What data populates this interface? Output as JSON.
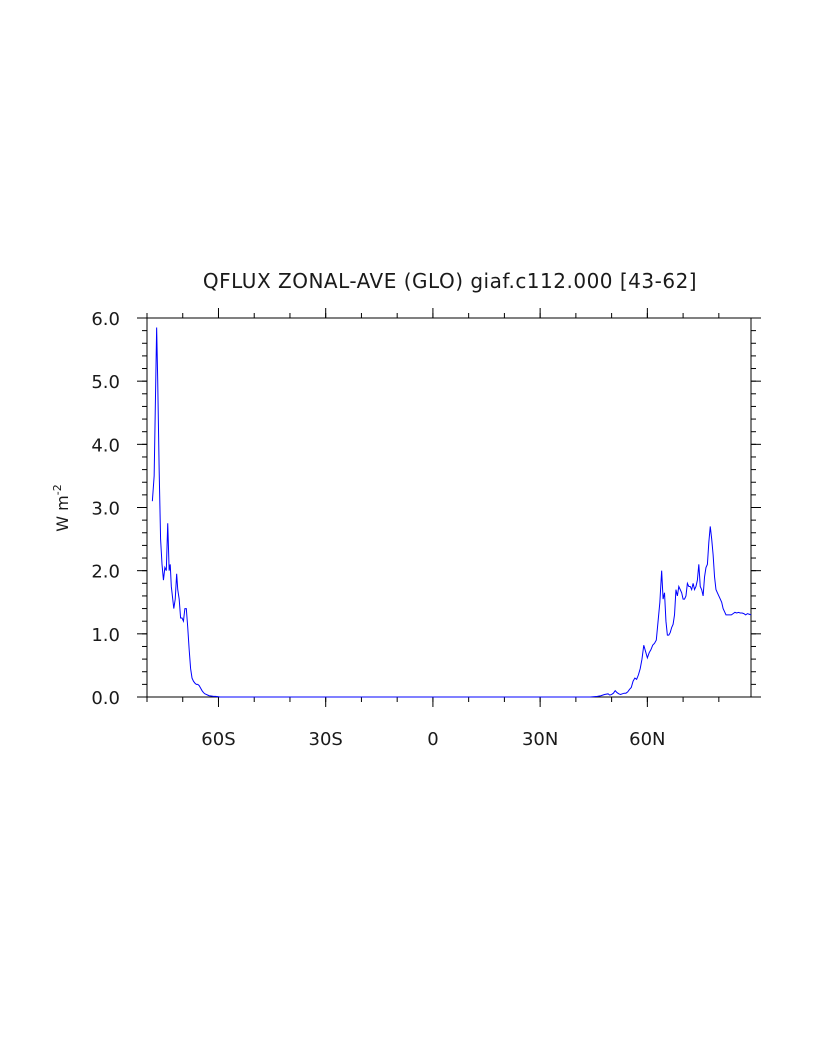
{
  "chart_data": {
    "type": "line",
    "title": "QFLUX ZONAL-AVE (GLO) giaf.c112.000 [43-62]",
    "xlabel": "",
    "ylabel": "W m",
    "ylabel_exponent": "-2",
    "xlim": [
      -80,
      89
    ],
    "ylim": [
      0,
      6
    ],
    "xticks": [
      {
        "value": -60,
        "label": "60S"
      },
      {
        "value": -30,
        "label": "30S"
      },
      {
        "value": 0,
        "label": "0"
      },
      {
        "value": 30,
        "label": "30N"
      },
      {
        "value": 60,
        "label": "60N"
      }
    ],
    "yticks": [
      {
        "value": 0,
        "label": "0.0"
      },
      {
        "value": 1,
        "label": "1.0"
      },
      {
        "value": 2,
        "label": "2.0"
      },
      {
        "value": 3,
        "label": "3.0"
      },
      {
        "value": 4,
        "label": "4.0"
      },
      {
        "value": 5,
        "label": "5.0"
      },
      {
        "value": 6,
        "label": "6.0"
      }
    ],
    "line_color": "#0000ff",
    "grid": false,
    "series": [
      {
        "x": [
          -78.5,
          -78.0,
          -77.7,
          -77.3,
          -77.0,
          -76.6,
          -76.2,
          -75.8,
          -75.4,
          -75.0,
          -74.6,
          -74.2,
          -73.8,
          -73.5,
          -73.2,
          -72.9,
          -72.5,
          -72.1,
          -71.7,
          -71.4,
          -71.0,
          -70.6,
          -70.2,
          -69.8,
          -69.4,
          -69.0,
          -68.6,
          -68.2,
          -67.8,
          -67.4,
          -67.0,
          -66.6,
          -66.2,
          -65.8,
          -65.4,
          -65.0,
          -64.6,
          -64.2,
          -63.8,
          -63.4,
          -63.0,
          -62.6,
          -62.0,
          -61.4,
          -60.8,
          -60.2,
          -59.6,
          -59.0,
          -58.2,
          -57.4,
          -56.6,
          -55.8,
          -55.0,
          -54.0,
          -52.0,
          -50.0,
          -45.0,
          -30.0,
          -15.0,
          0.0,
          15.0,
          30.0,
          40.0,
          44.0,
          46.0,
          47.0,
          48.0,
          49.0,
          49.5,
          50.0,
          50.5,
          51.0,
          51.5,
          52.0,
          52.5,
          53.0,
          53.5,
          54.0,
          54.5,
          55.0,
          55.5,
          56.0,
          56.5,
          57.0,
          57.5,
          58.0,
          58.5,
          59.0,
          59.5,
          60.0,
          60.5,
          61.0,
          61.5,
          62.0,
          62.5,
          63.0,
          63.5,
          64.0,
          64.4,
          64.8,
          65.2,
          65.6,
          66.0,
          66.4,
          66.8,
          67.2,
          67.6,
          68.0,
          68.4,
          68.8,
          69.2,
          69.6,
          70.0,
          70.4,
          70.8,
          71.2,
          71.6,
          72.0,
          72.4,
          72.8,
          73.2,
          73.6,
          74.0,
          74.4,
          74.8,
          75.2,
          75.6,
          76.0,
          76.4,
          76.8,
          77.2,
          77.6,
          78.0,
          78.4,
          78.8,
          79.2,
          79.6,
          80.0,
          80.4,
          80.8,
          81.2,
          81.6,
          82.0,
          82.5,
          83.0,
          83.5,
          84.0,
          84.5,
          85.0,
          85.5,
          86.0,
          86.5,
          87.0,
          87.5,
          88.0,
          88.5,
          89.0
        ],
        "y": [
          3.1,
          3.5,
          4.5,
          5.85,
          5.0,
          3.6,
          2.5,
          2.1,
          1.85,
          2.05,
          2.0,
          2.75,
          2.0,
          2.1,
          1.75,
          1.6,
          1.4,
          1.55,
          1.95,
          1.7,
          1.55,
          1.25,
          1.25,
          1.2,
          1.4,
          1.4,
          1.1,
          0.75,
          0.45,
          0.3,
          0.25,
          0.22,
          0.2,
          0.2,
          0.18,
          0.14,
          0.1,
          0.07,
          0.05,
          0.04,
          0.03,
          0.02,
          0.015,
          0.01,
          0.01,
          0.005,
          0.0,
          0.0,
          0.0,
          0.0,
          0.0,
          0.0,
          0.0,
          0.0,
          0.0,
          0.0,
          0.0,
          0.0,
          0.0,
          0.0,
          0.0,
          0.0,
          0.0,
          0.0,
          0.01,
          0.02,
          0.04,
          0.05,
          0.03,
          0.04,
          0.06,
          0.1,
          0.07,
          0.05,
          0.04,
          0.05,
          0.06,
          0.06,
          0.08,
          0.12,
          0.15,
          0.25,
          0.3,
          0.28,
          0.35,
          0.45,
          0.6,
          0.82,
          0.72,
          0.62,
          0.7,
          0.75,
          0.82,
          0.85,
          0.9,
          1.2,
          1.5,
          2.0,
          1.55,
          1.65,
          1.2,
          0.98,
          0.98,
          1.02,
          1.1,
          1.15,
          1.3,
          1.7,
          1.6,
          1.75,
          1.7,
          1.65,
          1.55,
          1.55,
          1.6,
          1.8,
          1.75,
          1.75,
          1.7,
          1.8,
          1.7,
          1.75,
          1.85,
          2.1,
          1.75,
          1.7,
          1.6,
          1.9,
          2.05,
          2.1,
          2.45,
          2.7,
          2.5,
          2.25,
          1.9,
          1.7,
          1.65,
          1.6,
          1.55,
          1.5,
          1.4,
          1.35,
          1.3,
          1.3,
          1.3,
          1.3,
          1.32,
          1.34,
          1.33,
          1.34,
          1.33,
          1.33,
          1.32,
          1.3,
          1.32,
          1.31,
          1.3
        ]
      }
    ]
  }
}
